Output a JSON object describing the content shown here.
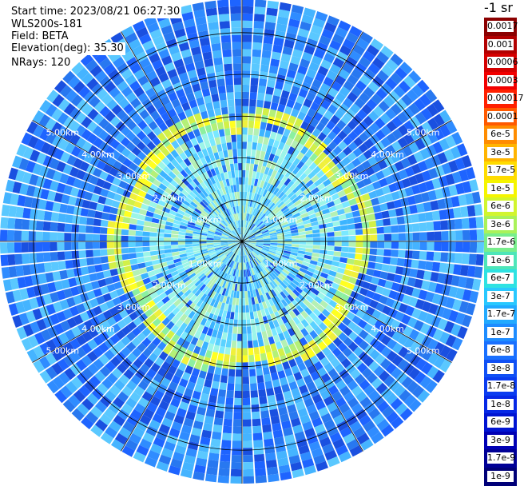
{
  "header": {
    "start_time": "Start time: 2023/08/21 06:27:30",
    "site": "WLS200s-181",
    "field": "Field: BETA",
    "elevation": "Elevation(deg): 35.30",
    "nrays": "NRays: 120"
  },
  "unit": "-1 sr",
  "ppi": {
    "max_range_km": 5.8,
    "rays": 120,
    "ring_ranges_km": [
      1,
      2,
      3,
      4,
      5
    ],
    "range_labels_right": [
      "1.00km",
      "2.00km",
      "3.00km",
      "4.00km",
      "5.00km"
    ],
    "range_labels_left": [
      "1.00km",
      "2.00km",
      "3.00km",
      "4.00km",
      "5.00km"
    ],
    "aerosol_ring_km": 2.9,
    "background_colors": [
      "#1e64ff",
      "#2f8cff",
      "#45b4ff",
      "#1a50e0",
      "#5ac8ff",
      "#2878f0"
    ],
    "inner_colors": [
      "#5ad2ff",
      "#7ae8ff",
      "#9cf5e8",
      "#3cb4ff",
      "#b4f0b4"
    ],
    "ring_colors": [
      "#f0f03c",
      "#d2f048",
      "#b4f078",
      "#ffff20",
      "#8cf0a0"
    ]
  },
  "colorbar": {
    "labels": [
      "0.0017",
      "0.001",
      "0.0006",
      "0.0003",
      "0.00017",
      "0.0001",
      "6e-5",
      "3e-5",
      "1.7e-5",
      "1e-5",
      "6e-6",
      "3e-6",
      "1.7e-6",
      "1e-6",
      "6e-7",
      "3e-7",
      "1.7e-7",
      "1e-7",
      "6e-8",
      "3e-8",
      "1.7e-8",
      "1e-8",
      "6e-9",
      "3e-9",
      "1.7e-9",
      "1e-9"
    ],
    "colors": [
      "#8b0000",
      "#b20000",
      "#d40000",
      "#f20000",
      "#ff2000",
      "#ff5a00",
      "#ff8c00",
      "#ffb400",
      "#ffdc00",
      "#f5f500",
      "#d2f52e",
      "#aaf25a",
      "#78ee8c",
      "#4ee6b9",
      "#2ee2e2",
      "#28c8ff",
      "#22aaff",
      "#1e8cff",
      "#1a70ff",
      "#1050f5",
      "#0a3cf0",
      "#0628e6",
      "#0014d2",
      "#0000b4",
      "#000096",
      "#000078"
    ]
  }
}
